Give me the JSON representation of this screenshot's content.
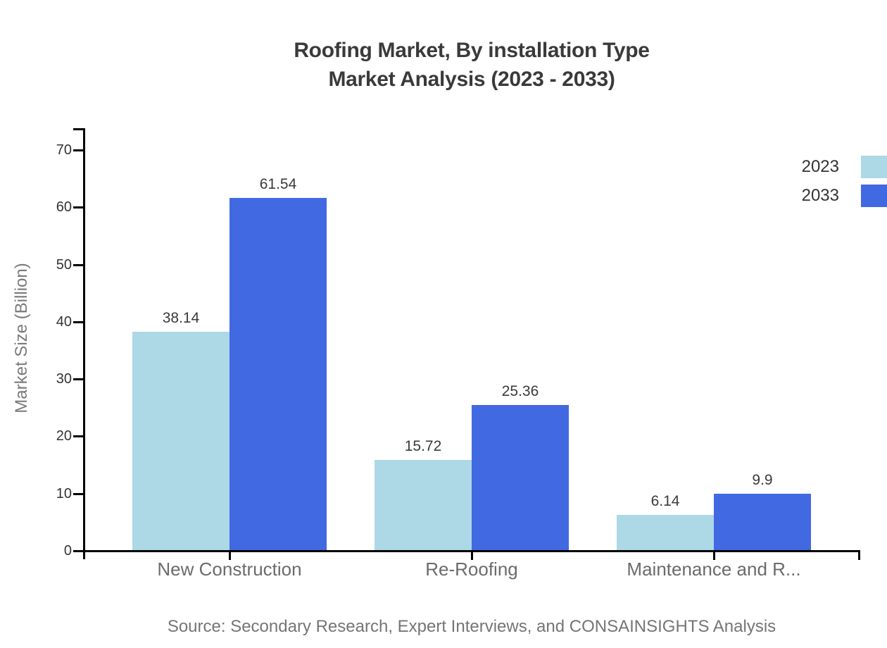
{
  "page": {
    "background": "#ffffff",
    "source_note": "Source: Secondary Research, Expert Interviews, and CONSAINSIGHTS Analysis"
  },
  "chart_data": {
    "type": "bar",
    "title_lines": [
      "Roofing Market, By installation Type",
      "Market Analysis (2023 - 2033)"
    ],
    "title": "Roofing Market, By installation Type Market Analysis (2023 - 2033)",
    "ylabel": "Market Size (Billion)",
    "xlabel": "",
    "categories": [
      "New Construction",
      "Re-Roofing",
      "Maintenance and R..."
    ],
    "series": [
      {
        "name": "2023",
        "color": "#ADD8E6",
        "values": [
          38.14,
          15.72,
          6.14
        ],
        "labels": [
          "38.14",
          "15.72",
          "6.14"
        ]
      },
      {
        "name": "2033",
        "color": "#4169E1",
        "values": [
          61.54,
          25.36,
          9.9
        ],
        "labels": [
          "61.54",
          "25.36",
          "9.9"
        ]
      }
    ],
    "ylim": [
      0,
      73.7
    ],
    "yticks": [
      0,
      10,
      20,
      30,
      40,
      50,
      60,
      70
    ],
    "grid": false,
    "legend_position": "top-right",
    "style_colors": {
      "axis": "#000000",
      "tick_label": "#333333",
      "category_label": "#6b6b6b",
      "value_label": "#3a3a3a",
      "axis_title": "#7a7a7a",
      "title": "#3a3a3a",
      "source": "#757575"
    }
  }
}
